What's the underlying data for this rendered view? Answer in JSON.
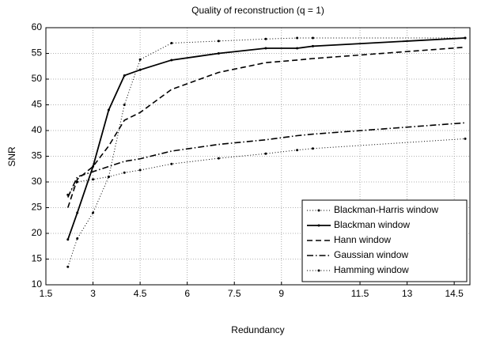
{
  "chart_data": {
    "type": "line",
    "title": "Quality of reconstruction (q = 1)",
    "x_label": "Redundancy",
    "y_label": "SNR",
    "x": [
      2.2,
      2.5,
      3,
      3.5,
      4,
      4.5,
      5.5,
      7,
      8.5,
      9.5,
      10,
      14.85
    ],
    "series": [
      {
        "name": "Blackman-Harris window",
        "color": "#000000",
        "linestyle": "dotted",
        "marker": true,
        "values": [
          13.5,
          19,
          24,
          31,
          45,
          53.8,
          57,
          57.4,
          57.8,
          58,
          58,
          58
        ]
      },
      {
        "name": "Blackman window",
        "color": "#000000",
        "linestyle": "solid",
        "marker": true,
        "values": [
          18.8,
          24,
          33,
          44,
          50.7,
          51.8,
          53.7,
          55,
          56,
          56,
          56.4,
          58
        ]
      },
      {
        "name": "Hann window",
        "color": "#000000",
        "linestyle": "dashed",
        "marker": false,
        "values": [
          25,
          30.5,
          33,
          37,
          42,
          43.5,
          48,
          51.3,
          53.2,
          53.7,
          54,
          56.2
        ]
      },
      {
        "name": "Gaussian window",
        "color": "#000000",
        "linestyle": "dashdot",
        "marker": false,
        "values": [
          27,
          31,
          32,
          33,
          34,
          34.5,
          36,
          37.3,
          38.2,
          39,
          39.3,
          41.5
        ]
      },
      {
        "name": "Hamming window",
        "color": "#000000",
        "linestyle": "dotted",
        "marker": true,
        "values": [
          27.5,
          30,
          30.5,
          31,
          31.8,
          32.3,
          33.5,
          34.6,
          35.5,
          36.2,
          36.5,
          38.4
        ]
      }
    ],
    "xlim": [
      1.5,
      15
    ],
    "xticks": [
      1.5,
      3,
      4.5,
      6,
      7.5,
      9,
      11.5,
      13,
      14.5
    ],
    "ylim": [
      10,
      60
    ],
    "yticks": [
      10,
      15,
      20,
      25,
      30,
      35,
      40,
      45,
      50,
      55,
      60
    ],
    "grid": true,
    "legend": "lower right"
  }
}
